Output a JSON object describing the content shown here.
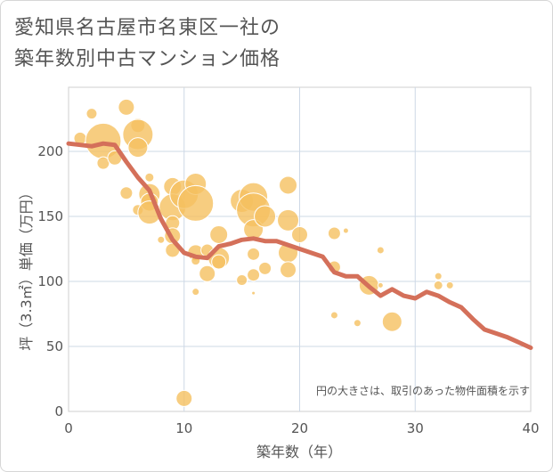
{
  "chart_data": {
    "type": "scatter",
    "title": [
      "愛知県名古屋市名東区一社の",
      "築年数別中古マンション価格"
    ],
    "xlabel": "築年数（年）",
    "ylabel": "坪（3.3㎡）単価（万円）",
    "xlim": [
      0,
      40
    ],
    "ylim": [
      0,
      240
    ],
    "x_ticks": [
      0,
      10,
      20,
      30,
      40
    ],
    "y_ticks": [
      0,
      50,
      100,
      150,
      200
    ],
    "grid": true,
    "annotation": "円の大きさは、取引のあった物件面積を示す",
    "colors": {
      "bubble": "#f5c060",
      "bubble_stroke": "#ffffff",
      "line": "#d4705a",
      "grid": "#cdd8e6"
    },
    "series": [
      {
        "kind": "bubble",
        "points": [
          {
            "x": 1,
            "y": 210,
            "s": 7
          },
          {
            "x": 2,
            "y": 229,
            "s": 6
          },
          {
            "x": 3,
            "y": 208,
            "s": 20
          },
          {
            "x": 3,
            "y": 191,
            "s": 7
          },
          {
            "x": 4,
            "y": 195,
            "s": 8
          },
          {
            "x": 5,
            "y": 234,
            "s": 9
          },
          {
            "x": 5,
            "y": 168,
            "s": 7
          },
          {
            "x": 6,
            "y": 220,
            "s": 8
          },
          {
            "x": 6,
            "y": 213,
            "s": 17
          },
          {
            "x": 6,
            "y": 203,
            "s": 11
          },
          {
            "x": 6,
            "y": 155,
            "s": 6
          },
          {
            "x": 7,
            "y": 180,
            "s": 5
          },
          {
            "x": 7,
            "y": 167,
            "s": 12
          },
          {
            "x": 7,
            "y": 161,
            "s": 10
          },
          {
            "x": 7,
            "y": 153,
            "s": 13
          },
          {
            "x": 8,
            "y": 132,
            "s": 4
          },
          {
            "x": 9,
            "y": 173,
            "s": 10
          },
          {
            "x": 9,
            "y": 157,
            "s": 15
          },
          {
            "x": 9,
            "y": 145,
            "s": 8
          },
          {
            "x": 9,
            "y": 135,
            "s": 9
          },
          {
            "x": 9,
            "y": 124,
            "s": 8
          },
          {
            "x": 10,
            "y": 167,
            "s": 16
          },
          {
            "x": 10,
            "y": 10,
            "s": 9
          },
          {
            "x": 11,
            "y": 175,
            "s": 12
          },
          {
            "x": 11,
            "y": 160,
            "s": 20
          },
          {
            "x": 11,
            "y": 122,
            "s": 9
          },
          {
            "x": 11,
            "y": 116,
            "s": 5
          },
          {
            "x": 11,
            "y": 92,
            "s": 4
          },
          {
            "x": 12,
            "y": 124,
            "s": 7
          },
          {
            "x": 12,
            "y": 106,
            "s": 9
          },
          {
            "x": 13,
            "y": 136,
            "s": 10
          },
          {
            "x": 13,
            "y": 118,
            "s": 12
          },
          {
            "x": 13,
            "y": 115,
            "s": 8
          },
          {
            "x": 15,
            "y": 162,
            "s": 13
          },
          {
            "x": 15,
            "y": 101,
            "s": 6
          },
          {
            "x": 16,
            "y": 165,
            "s": 16
          },
          {
            "x": 16,
            "y": 155,
            "s": 19
          },
          {
            "x": 16,
            "y": 140,
            "s": 11
          },
          {
            "x": 16,
            "y": 121,
            "s": 7
          },
          {
            "x": 16,
            "y": 105,
            "s": 7
          },
          {
            "x": 16,
            "y": 91,
            "s": 2
          },
          {
            "x": 17,
            "y": 150,
            "s": 12
          },
          {
            "x": 17,
            "y": 110,
            "s": 7
          },
          {
            "x": 19,
            "y": 174,
            "s": 10
          },
          {
            "x": 19,
            "y": 147,
            "s": 12
          },
          {
            "x": 19,
            "y": 122,
            "s": 11
          },
          {
            "x": 19,
            "y": 109,
            "s": 9
          },
          {
            "x": 20,
            "y": 136,
            "s": 9
          },
          {
            "x": 23,
            "y": 137,
            "s": 7
          },
          {
            "x": 23,
            "y": 111,
            "s": 7
          },
          {
            "x": 23,
            "y": 74,
            "s": 4
          },
          {
            "x": 24,
            "y": 139,
            "s": 3
          },
          {
            "x": 25,
            "y": 68,
            "s": 4
          },
          {
            "x": 26,
            "y": 97,
            "s": 11
          },
          {
            "x": 27,
            "y": 124,
            "s": 4
          },
          {
            "x": 27,
            "y": 97,
            "s": 3
          },
          {
            "x": 28,
            "y": 69,
            "s": 11
          },
          {
            "x": 32,
            "y": 104,
            "s": 4
          },
          {
            "x": 32,
            "y": 97,
            "s": 5
          },
          {
            "x": 33,
            "y": 97,
            "s": 4
          }
        ]
      },
      {
        "kind": "line",
        "points": [
          {
            "x": 0,
            "y": 206
          },
          {
            "x": 1,
            "y": 205
          },
          {
            "x": 2,
            "y": 204
          },
          {
            "x": 3,
            "y": 206
          },
          {
            "x": 4,
            "y": 205
          },
          {
            "x": 5,
            "y": 192
          },
          {
            "x": 6,
            "y": 180
          },
          {
            "x": 7,
            "y": 170
          },
          {
            "x": 8,
            "y": 148
          },
          {
            "x": 9,
            "y": 132
          },
          {
            "x": 10,
            "y": 122
          },
          {
            "x": 11,
            "y": 119
          },
          {
            "x": 12,
            "y": 118
          },
          {
            "x": 13,
            "y": 127
          },
          {
            "x": 14,
            "y": 129
          },
          {
            "x": 15,
            "y": 132
          },
          {
            "x": 16,
            "y": 133
          },
          {
            "x": 17,
            "y": 131
          },
          {
            "x": 18,
            "y": 131
          },
          {
            "x": 19,
            "y": 128
          },
          {
            "x": 20,
            "y": 125
          },
          {
            "x": 21,
            "y": 122
          },
          {
            "x": 22,
            "y": 119
          },
          {
            "x": 23,
            "y": 107
          },
          {
            "x": 24,
            "y": 104
          },
          {
            "x": 25,
            "y": 104
          },
          {
            "x": 26,
            "y": 96
          },
          {
            "x": 27,
            "y": 89
          },
          {
            "x": 28,
            "y": 94
          },
          {
            "x": 29,
            "y": 89
          },
          {
            "x": 30,
            "y": 87
          },
          {
            "x": 31,
            "y": 92
          },
          {
            "x": 32,
            "y": 89
          },
          {
            "x": 33,
            "y": 84
          },
          {
            "x": 34,
            "y": 80
          },
          {
            "x": 35,
            "y": 71
          },
          {
            "x": 36,
            "y": 63
          },
          {
            "x": 37,
            "y": 60
          },
          {
            "x": 38,
            "y": 57
          },
          {
            "x": 39,
            "y": 53
          },
          {
            "x": 40,
            "y": 49
          }
        ]
      }
    ]
  }
}
